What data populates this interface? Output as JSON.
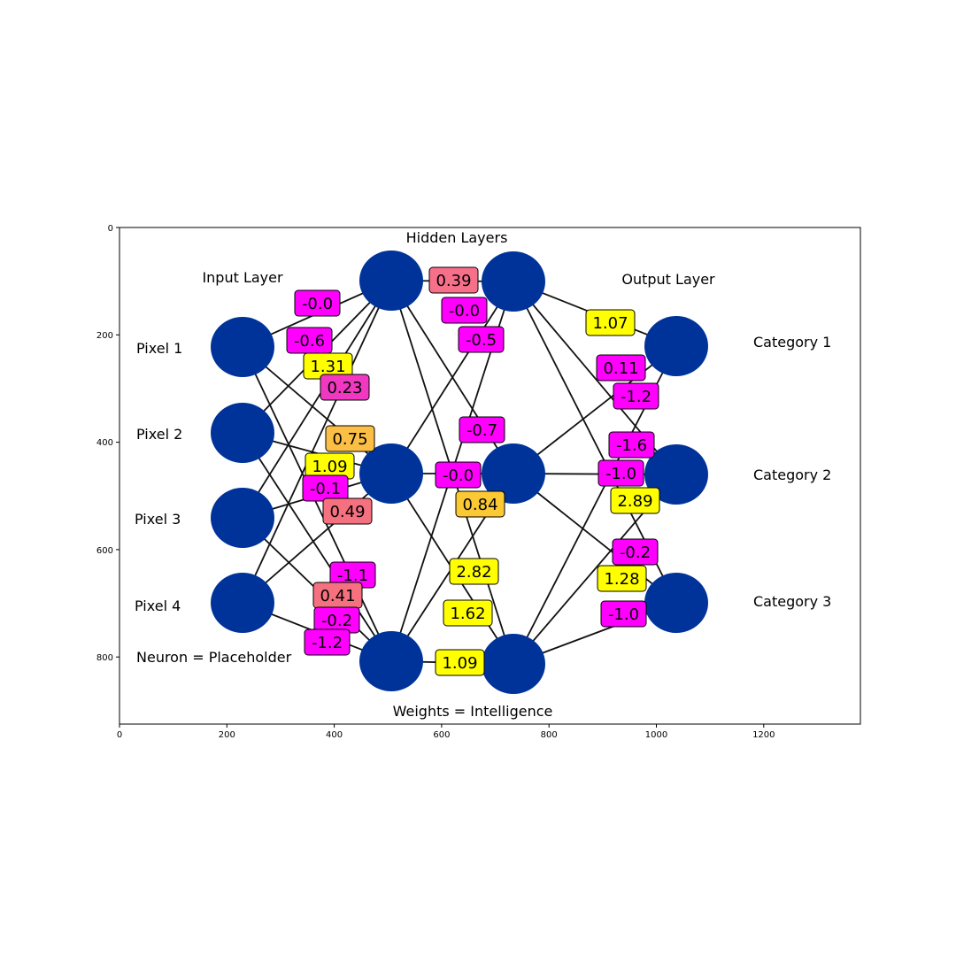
{
  "axes": {
    "x_ticks": [
      "0",
      "200",
      "400",
      "600",
      "800",
      "1000",
      "1200"
    ],
    "y_ticks": [
      "0",
      "200",
      "400",
      "600",
      "800"
    ]
  },
  "titles": {
    "hidden": "Hidden Layers",
    "input": "Input Layer",
    "output": "Output Layer",
    "neuron_note": "Neuron = Placeholder",
    "weights_note": "Weights = Intelligence"
  },
  "inputs": [
    "Pixel 1",
    "Pixel 2",
    "Pixel 3",
    "Pixel 4"
  ],
  "outputs": [
    "Category 1",
    "Category 2",
    "Category 3"
  ],
  "colors": {
    "neuron": "#00339a",
    "edge": "#111111",
    "negative": "#ff00ff",
    "positive": "#ffff00",
    "mid_orange": "#fbc02d",
    "mid_pink": "#f06292",
    "mid_salmon": "#f48080"
  },
  "weights": [
    {
      "v": "-0.0",
      "fill": "#ff00ff"
    },
    {
      "v": "-0.6",
      "fill": "#ff00ff"
    },
    {
      "v": "1.31",
      "fill": "#ffff00"
    },
    {
      "v": "0.23",
      "fill": "#f039c0"
    },
    {
      "v": "0.75",
      "fill": "#fbbf45"
    },
    {
      "v": "1.09",
      "fill": "#ffff00"
    },
    {
      "v": "-0.1",
      "fill": "#ff00ff"
    },
    {
      "v": "0.49",
      "fill": "#f6717f"
    },
    {
      "v": "-1.1",
      "fill": "#ff00ff"
    },
    {
      "v": "0.41",
      "fill": "#f6717f"
    },
    {
      "v": "-0.2",
      "fill": "#ff00ff"
    },
    {
      "v": "-1.2",
      "fill": "#ff00ff"
    },
    {
      "v": "0.39",
      "fill": "#f7708a"
    },
    {
      "v": "-0.0",
      "fill": "#ff00ff"
    },
    {
      "v": "-0.5",
      "fill": "#ff00ff"
    },
    {
      "v": "-0.7",
      "fill": "#ff00ff"
    },
    {
      "v": "-0.0",
      "fill": "#ff00ff"
    },
    {
      "v": "0.84",
      "fill": "#fbc934"
    },
    {
      "v": "2.82",
      "fill": "#ffff00"
    },
    {
      "v": "1.62",
      "fill": "#ffff00"
    },
    {
      "v": "1.09",
      "fill": "#ffff00"
    },
    {
      "v": "1.07",
      "fill": "#ffff00"
    },
    {
      "v": "0.11",
      "fill": "#ff00ff"
    },
    {
      "v": "-1.2",
      "fill": "#ff00ff"
    },
    {
      "v": "-1.6",
      "fill": "#ff00ff"
    },
    {
      "v": "-1.0",
      "fill": "#ff00ff"
    },
    {
      "v": "2.89",
      "fill": "#ffff00"
    },
    {
      "v": "-0.2",
      "fill": "#ff00ff"
    },
    {
      "v": "1.28",
      "fill": "#ffff00"
    },
    {
      "v": "-1.0",
      "fill": "#ff00ff"
    }
  ]
}
